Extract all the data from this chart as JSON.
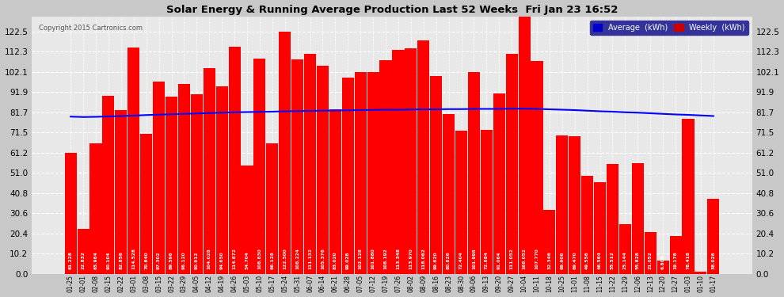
{
  "title": "Solar Energy & Running Average Production Last 52 Weeks  Fri Jan 23 16:52",
  "copyright": "Copyright 2015 Cartronics.com",
  "bar_color": "#ff0000",
  "avg_line_color": "#0000ff",
  "background_color": "#c8c8c8",
  "plot_bg_color": "#e8e8e8",
  "grid_color": "#ffffff",
  "yticks": [
    0.0,
    10.2,
    20.4,
    30.6,
    40.8,
    51.0,
    61.2,
    71.5,
    81.7,
    91.9,
    102.1,
    112.3,
    122.5
  ],
  "legend_avg_color": "#0000cc",
  "legend_weekly_color": "#cc0000",
  "dates": [
    "01-25",
    "02-01",
    "02-08",
    "02-15",
    "02-22",
    "03-01",
    "03-08",
    "03-15",
    "03-22",
    "03-29",
    "04-05",
    "04-12",
    "04-19",
    "04-26",
    "05-03",
    "05-10",
    "05-17",
    "05-24",
    "05-31",
    "06-07",
    "06-14",
    "06-21",
    "06-28",
    "07-05",
    "07-12",
    "07-19",
    "07-26",
    "08-02",
    "08-09",
    "08-16",
    "08-23",
    "08-30",
    "09-06",
    "09-13",
    "09-20",
    "09-27",
    "10-04",
    "10-11",
    "10-18",
    "10-25",
    "11-01",
    "11-08",
    "11-15",
    "11-22",
    "11-29",
    "12-06",
    "12-13",
    "12-20",
    "12-27",
    "01-03",
    "01-10",
    "01-17"
  ],
  "weekly_values": [
    61.228,
    22.832,
    65.964,
    90.104,
    82.856,
    114.528,
    70.84,
    97.302,
    89.596,
    96.12,
    90.912,
    104.028,
    94.65,
    114.872,
    54.704,
    108.83,
    66.128,
    122.5,
    108.224,
    111.132,
    105.376,
    83.02,
    99.028,
    102.128,
    101.88,
    108.192,
    113.348,
    113.97,
    118.062,
    99.82,
    80.826,
    72.404,
    101.998,
    72.884,
    91.064,
    111.052,
    168.052,
    107.77,
    32.346,
    69.906,
    69.47,
    49.556,
    46.564,
    55.512,
    25.144,
    55.828,
    21.052,
    6.808,
    19.178,
    78.418,
    1.03,
    38.026
  ],
  "avg_values": [
    79.5,
    79.3,
    79.4,
    79.6,
    79.8,
    80.0,
    80.3,
    80.5,
    80.7,
    80.9,
    81.1,
    81.3,
    81.5,
    81.7,
    81.8,
    81.9,
    82.0,
    82.2,
    82.3,
    82.4,
    82.5,
    82.6,
    82.7,
    82.8,
    82.9,
    83.0,
    83.0,
    83.1,
    83.2,
    83.2,
    83.3,
    83.3,
    83.4,
    83.4,
    83.4,
    83.5,
    83.5,
    83.4,
    83.2,
    83.0,
    82.8,
    82.5,
    82.2,
    82.0,
    81.7,
    81.5,
    81.2,
    80.9,
    80.6,
    80.4,
    80.1,
    79.8
  ]
}
